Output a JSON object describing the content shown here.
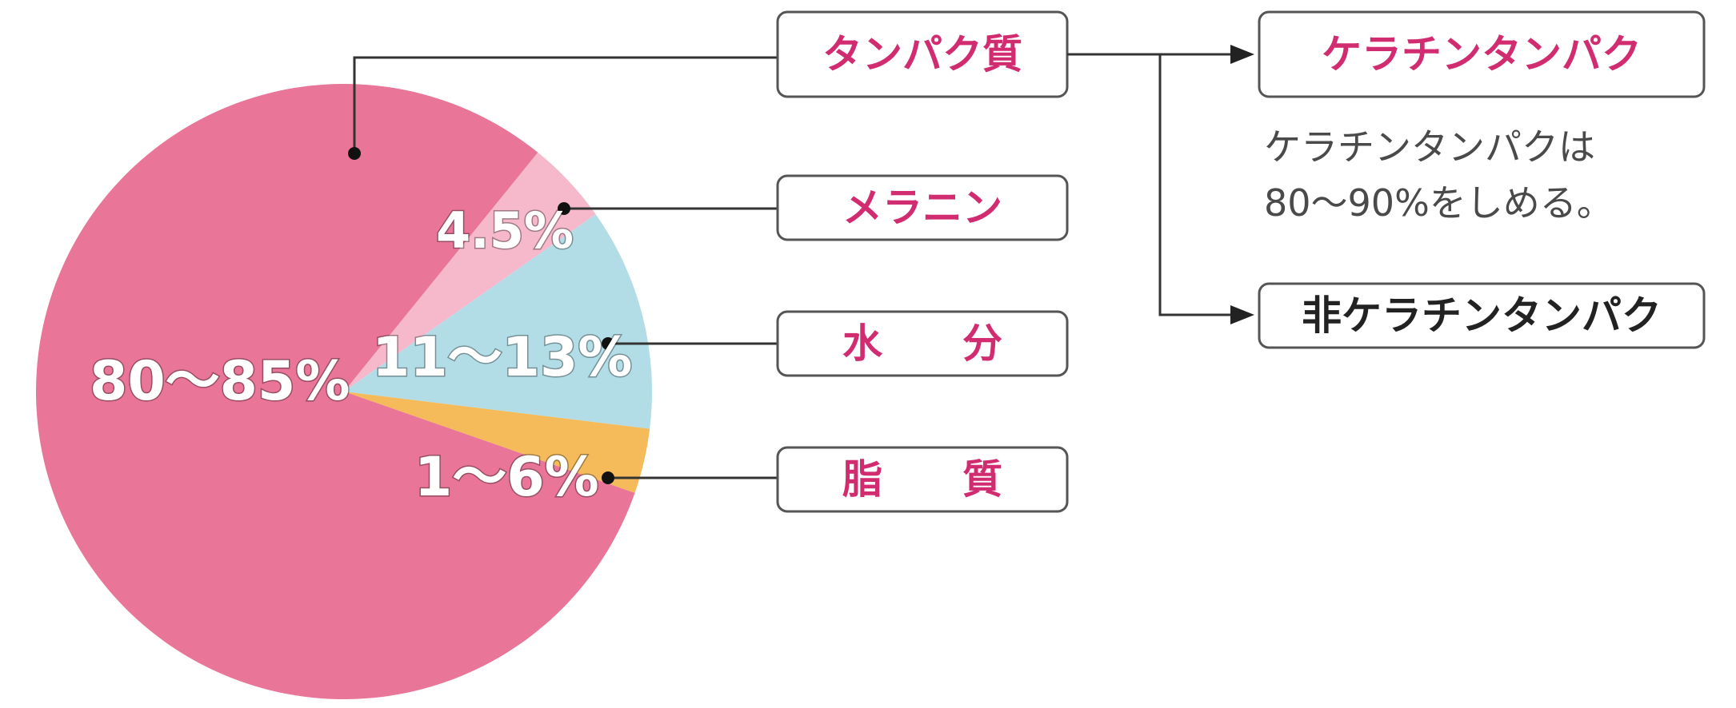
{
  "chart_data": {
    "type": "pie",
    "title": "",
    "slices": [
      {
        "id": "protein",
        "category": "タンパク質",
        "value_label": "80〜85%",
        "value": 82.5,
        "color": "#e97598"
      },
      {
        "id": "melanin",
        "category": "メラニン",
        "value_label": "4.5%",
        "value": 4.5,
        "color": "#f5b9cb"
      },
      {
        "id": "water",
        "category": "水　　分",
        "value_label": "11〜13%",
        "value": 12,
        "color": "#b2dde6"
      },
      {
        "id": "lipid",
        "category": "脂　　質",
        "value_label": "1〜6%",
        "value": 3.5,
        "color": "#f5bb5b"
      }
    ]
  },
  "protein_breakdown": {
    "keratin_label": "ケラチンタンパク",
    "note_line1": "ケラチンタンパクは",
    "note_line2": "80〜90%をしめる。",
    "non_keratin_label": "非ケラチンタンパク"
  },
  "colors": {
    "accent": "#d22c71",
    "dark_text": "#222222",
    "line": "#333333",
    "box_border": "#555555"
  }
}
